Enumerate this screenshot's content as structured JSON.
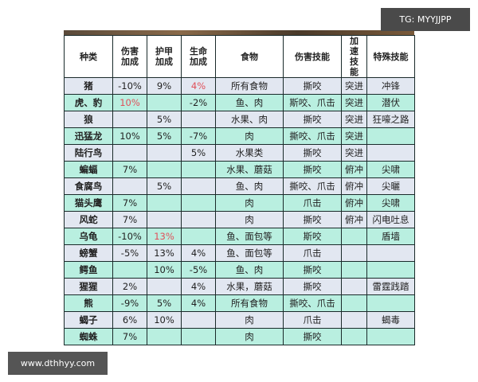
{
  "watermarks": {
    "top_right": "TG: MYYJJPP",
    "bottom_left": "www.dthhyy.com"
  },
  "colors": {
    "row_odd": "#e2e7f1",
    "row_even": "#b9efe0",
    "highlight": "#e0505a"
  },
  "headers": [
    "种类",
    "伤害加成",
    "护甲加成",
    "生命加成",
    "食物",
    "伤害技能",
    "加速技能",
    "特殊技能"
  ],
  "rows": [
    [
      "猪",
      "-10%",
      "9%",
      "4%",
      "所有食物",
      "撕咬",
      "突进",
      "冲锋"
    ],
    [
      "虎、豹",
      "10%",
      "",
      "-2%",
      "鱼、肉",
      "斯咬、爪击",
      "突进",
      "潜伏"
    ],
    [
      "狼",
      "",
      "5%",
      "",
      "水果、肉",
      "撕咬",
      "突进",
      "狂嚎之路"
    ],
    [
      "迅猛龙",
      "10%",
      "5%",
      "-7%",
      "肉",
      "撕咬、爪击",
      "突进",
      ""
    ],
    [
      "陆行鸟",
      "",
      "",
      "5%",
      "水果类",
      "撕咬",
      "突进",
      ""
    ],
    [
      "蝙蝠",
      "7%",
      "",
      "",
      "水果、蘑菇",
      "撕咬",
      "俯冲",
      "尖啸"
    ],
    [
      "食腐鸟",
      "",
      "5%",
      "",
      "鱼、肉",
      "撕咬、爪击",
      "俯冲",
      "尖曬"
    ],
    [
      "猫头鹰",
      "7%",
      "",
      "",
      "肉",
      "爪击",
      "俯冲",
      "尖啸"
    ],
    [
      "风蛇",
      "7%",
      "",
      "",
      "肉",
      "撕咬",
      "俯冲",
      "闪电吐息"
    ],
    [
      "乌龟",
      "-10%",
      "13%",
      "",
      "鱼、面包等",
      "斯咬",
      "",
      "盾墙"
    ],
    [
      "螃蟹",
      "-5%",
      "13%",
      "4%",
      "鱼、面包等",
      "爪击",
      "",
      ""
    ],
    [
      "鳄鱼",
      "",
      "10%",
      "-5%",
      "鱼、肉",
      "撕咬",
      "",
      ""
    ],
    [
      "猩猩",
      "2%",
      "",
      "4%",
      "水果，蘑菇",
      "撕咬",
      "",
      "雷霆践踏"
    ],
    [
      "熊",
      "-9%",
      "5%",
      "4%",
      "所有食物",
      "撕咬、爪击",
      "",
      ""
    ],
    [
      "蝎子",
      "6%",
      "10%",
      "",
      "肉",
      "爪击",
      "",
      "蝎毒"
    ],
    [
      "蜘蛛",
      "7%",
      "",
      "",
      "肉",
      "撕咬",
      "",
      ""
    ]
  ],
  "red_cells": [
    [
      0,
      3
    ],
    [
      1,
      1
    ],
    [
      9,
      2
    ]
  ]
}
